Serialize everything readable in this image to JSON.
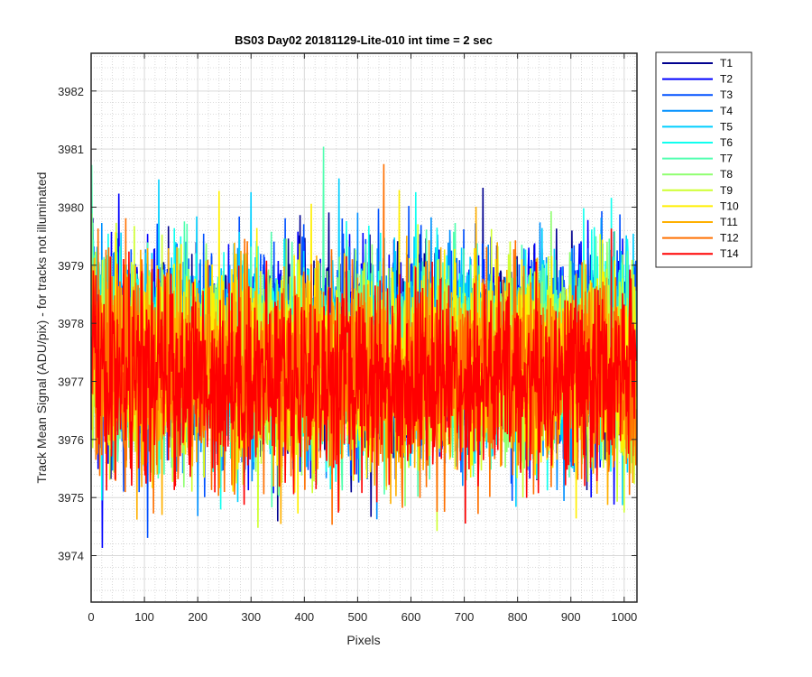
{
  "chart_data": {
    "type": "line",
    "title": "BS03 Day02 20181129-Lite-010 int time = 2 sec",
    "xlabel": "Pixels",
    "ylabel": "Track Mean Signal (ADU/pix) - for tracks not illuminated",
    "xlim": [
      0,
      1024
    ],
    "ylim": [
      3973.2,
      3982.65
    ],
    "x_ticks": [
      0,
      100,
      200,
      300,
      400,
      500,
      600,
      700,
      800,
      900,
      1000
    ],
    "y_ticks": [
      3974,
      3975,
      3976,
      3977,
      3978,
      3979,
      3980,
      3981,
      3982
    ],
    "x_tick_labels": [
      "0",
      "100",
      "200",
      "300",
      "400",
      "500",
      "600",
      "700",
      "800",
      "900",
      "1000"
    ],
    "y_tick_labels": [
      "3974",
      "3975",
      "3976",
      "3977",
      "3978",
      "3979",
      "3980",
      "3981",
      "3982"
    ],
    "grid": "major and minor",
    "legend_position": "outside top-right",
    "n_points": 1024,
    "series": [
      {
        "name": "T1",
        "color": "#00008F",
        "mean": 3977.55,
        "noise_sd": 0.85
      },
      {
        "name": "T2",
        "color": "#0000FF",
        "mean": 3977.55,
        "noise_sd": 0.85
      },
      {
        "name": "T3",
        "color": "#0050FF",
        "mean": 3977.5,
        "noise_sd": 0.85
      },
      {
        "name": "T4",
        "color": "#0090FF",
        "mean": 3977.5,
        "noise_sd": 0.85
      },
      {
        "name": "T5",
        "color": "#00CFFF",
        "mean": 3977.45,
        "noise_sd": 0.85
      },
      {
        "name": "T6",
        "color": "#10FFEF",
        "mean": 3977.45,
        "noise_sd": 0.85
      },
      {
        "name": "T7",
        "color": "#50FFAF",
        "mean": 3977.4,
        "noise_sd": 0.85
      },
      {
        "name": "T8",
        "color": "#8FFF70",
        "mean": 3977.35,
        "noise_sd": 0.85
      },
      {
        "name": "T9",
        "color": "#CFFF30",
        "mean": 3977.3,
        "noise_sd": 0.85
      },
      {
        "name": "T10",
        "color": "#FFEF00",
        "mean": 3977.25,
        "noise_sd": 0.85
      },
      {
        "name": "T11",
        "color": "#FFB000",
        "mean": 3977.2,
        "noise_sd": 0.85
      },
      {
        "name": "T12",
        "color": "#FF7000",
        "mean": 3977.1,
        "noise_sd": 0.85
      },
      {
        "name": "T14",
        "color": "#FF0000",
        "mean": 3977.05,
        "noise_sd": 0.85
      }
    ]
  }
}
